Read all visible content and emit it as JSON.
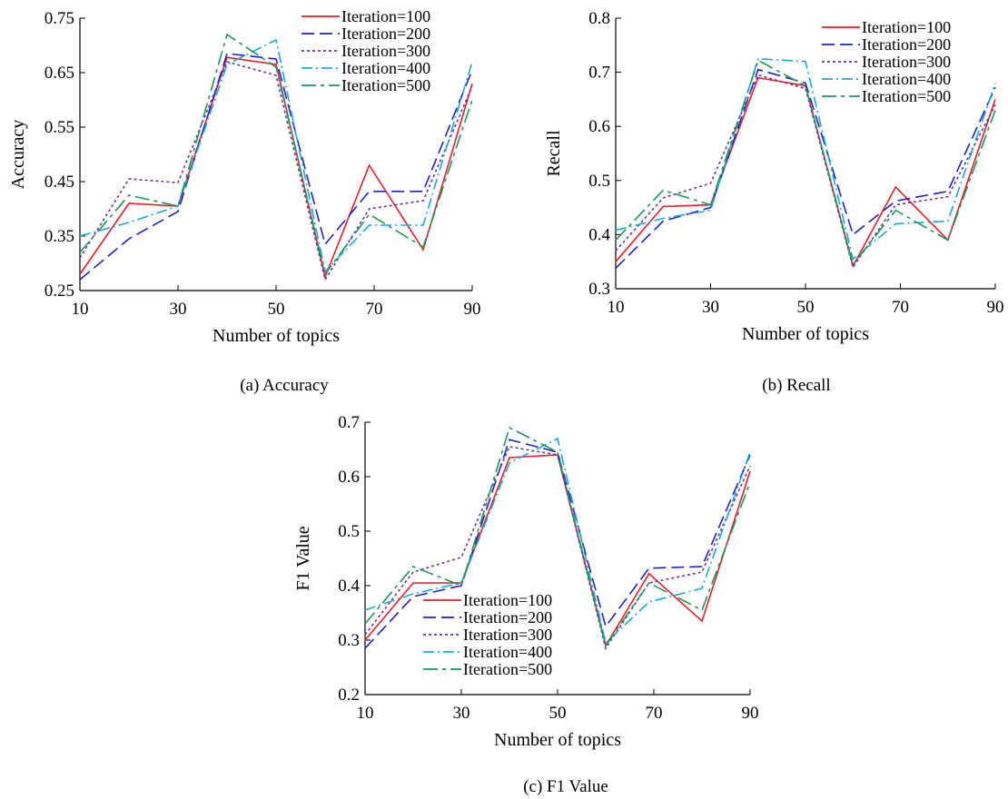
{
  "colors": {
    "iter100": "#ee1c25",
    "iter200": "#1e22c8",
    "iter300": "#7030a0",
    "iter400": "#17a9e0",
    "iter500": "#1a9a55"
  },
  "chart_data": [
    {
      "type": "line",
      "caption": "(a) Accuracy",
      "xlabel": "Number of topics",
      "ylabel": "Accuracy",
      "xlim": [
        10,
        90
      ],
      "ylim": [
        0.25,
        0.75
      ],
      "xticks": [
        10,
        30,
        50,
        70,
        90
      ],
      "yticks": [
        0.25,
        0.35,
        0.45,
        0.55,
        0.65,
        0.75
      ],
      "yticks_labels": [
        "0.25",
        "0.35",
        "0.45",
        "0.55",
        "0.65",
        "0.75"
      ],
      "legend": "top-right",
      "x": [
        10,
        20,
        30,
        40,
        50,
        60,
        69,
        80,
        90
      ],
      "series": [
        {
          "name": "Iteration=100",
          "values": [
            0.28,
            0.41,
            0.405,
            0.678,
            0.665,
            0.275,
            0.48,
            0.325,
            0.63
          ]
        },
        {
          "name": "Iteration=200",
          "values": [
            0.27,
            0.345,
            0.395,
            0.685,
            0.675,
            0.335,
            0.432,
            0.432,
            0.655
          ]
        },
        {
          "name": "Iteration=300",
          "values": [
            0.31,
            0.455,
            0.448,
            0.67,
            0.645,
            0.27,
            0.4,
            0.415,
            0.625
          ]
        },
        {
          "name": "Iteration=400",
          "values": [
            0.35,
            0.375,
            0.405,
            0.665,
            0.71,
            0.285,
            0.37,
            0.37,
            0.67
          ]
        },
        {
          "name": "Iteration=500",
          "values": [
            0.32,
            0.425,
            0.405,
            0.72,
            0.66,
            0.28,
            0.39,
            0.33,
            0.6
          ]
        }
      ]
    },
    {
      "type": "line",
      "caption": "(b) Recall",
      "xlabel": "Number of topics",
      "ylabel": "Recall",
      "xlim": [
        10,
        90
      ],
      "ylim": [
        0.3,
        0.8
      ],
      "xticks": [
        10,
        30,
        50,
        70,
        90
      ],
      "yticks": [
        0.3,
        0.4,
        0.5,
        0.6,
        0.7,
        0.8
      ],
      "yticks_labels": [
        "0.3",
        "0.4",
        "0.5",
        "0.6",
        "0.7",
        "0.8"
      ],
      "legend": "top-right",
      "x": [
        10,
        20,
        30,
        40,
        50,
        60,
        69,
        80,
        90
      ],
      "series": [
        {
          "name": "Iteration=100",
          "values": [
            0.35,
            0.452,
            0.455,
            0.69,
            0.675,
            0.342,
            0.488,
            0.39,
            0.65
          ]
        },
        {
          "name": "Iteration=200",
          "values": [
            0.338,
            0.425,
            0.45,
            0.705,
            0.68,
            0.4,
            0.462,
            0.48,
            0.672
          ]
        },
        {
          "name": "Iteration=300",
          "values": [
            0.37,
            0.468,
            0.495,
            0.695,
            0.67,
            0.34,
            0.455,
            0.47,
            0.64
          ]
        },
        {
          "name": "Iteration=400",
          "values": [
            0.408,
            0.43,
            0.445,
            0.725,
            0.72,
            0.355,
            0.42,
            0.425,
            0.68
          ]
        },
        {
          "name": "Iteration=500",
          "values": [
            0.39,
            0.482,
            0.455,
            0.722,
            0.675,
            0.345,
            0.445,
            0.39,
            0.63
          ]
        }
      ]
    },
    {
      "type": "line",
      "caption": "(c) F1 Value",
      "xlabel": "Number of topics",
      "ylabel": "F1 Value",
      "xlim": [
        10,
        90
      ],
      "ylim": [
        0.2,
        0.7
      ],
      "xticks": [
        10,
        30,
        50,
        70,
        90
      ],
      "yticks": [
        0.2,
        0.3,
        0.4,
        0.5,
        0.6,
        0.7
      ],
      "yticks_labels": [
        "0.2",
        "0.3",
        "0.4",
        "0.5",
        "0.6",
        "0.7"
      ],
      "legend": "center",
      "x": [
        10,
        20,
        30,
        40,
        50,
        60,
        69,
        80,
        90
      ],
      "series": [
        {
          "name": "Iteration=100",
          "values": [
            0.3,
            0.405,
            0.405,
            0.635,
            0.64,
            0.29,
            0.422,
            0.335,
            0.61
          ]
        },
        {
          "name": "Iteration=200",
          "values": [
            0.285,
            0.38,
            0.4,
            0.668,
            0.645,
            0.325,
            0.432,
            0.435,
            0.64
          ]
        },
        {
          "name": "Iteration=300",
          "values": [
            0.31,
            0.425,
            0.452,
            0.655,
            0.64,
            0.285,
            0.405,
            0.425,
            0.62
          ]
        },
        {
          "name": "Iteration=400",
          "values": [
            0.355,
            0.385,
            0.405,
            0.625,
            0.67,
            0.295,
            0.37,
            0.395,
            0.645
          ]
        },
        {
          "name": "Iteration=500",
          "values": [
            0.33,
            0.435,
            0.4,
            0.69,
            0.645,
            0.29,
            0.405,
            0.355,
            0.59
          ]
        }
      ]
    }
  ]
}
